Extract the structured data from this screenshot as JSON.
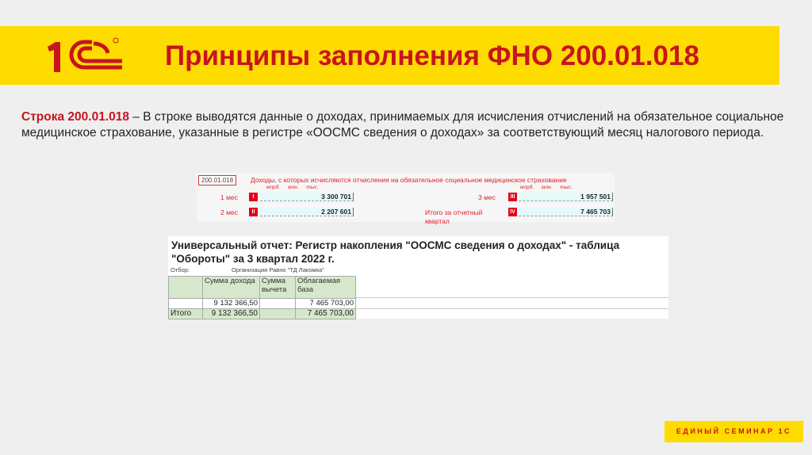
{
  "header": {
    "title": "Принципы заполнения ФНО 200.01.018",
    "logo_text": "1С"
  },
  "body": {
    "lead": "Строка 200.01.018",
    "text": " – В строке выводятся данные о доходах, принимаемых для исчисления отчислений на обязательное социальное медицинское страхование, указанные в регистре «ООСМС сведения о доходах» за соответствующий месяц налогового периода."
  },
  "form": {
    "code": "200.01.018",
    "heading": "Доходы, с которых исчисляются отчисления на обязательное социальное медицинское страхование",
    "units": "млрд. млн. тыс.",
    "rows": [
      {
        "label": "1 мес",
        "roman": "I",
        "value": "3 300 701"
      },
      {
        "label": "2 мес",
        "roman": "II",
        "value": "2 207 601"
      },
      {
        "label": "3 мес",
        "roman": "III",
        "value": "1 957 501"
      },
      {
        "label": "Итого за отчетный квартал",
        "roman": "IV",
        "value": "7 465 703"
      }
    ]
  },
  "report": {
    "title": "Универсальный отчет: Регистр накопления \"ООСМС сведения о доходах\" - таблица \"Обороты\" за 3 квартал 2022 г.",
    "filter_label": "Отбор:",
    "filter_value": "Организация Равно \"ТД Лакомка\"",
    "columns": [
      "",
      "Сумма дохода",
      "Сумма вычета",
      "Облагаемая база"
    ],
    "rows": [
      [
        "",
        "9 132 366,50",
        "",
        "7 465 703,00"
      ]
    ],
    "total": [
      "Итого",
      "9 132 366,50",
      "",
      "7 465 703,00"
    ]
  },
  "footer": {
    "label": "ЕДИНЫЙ СЕМИНАР 1С"
  },
  "colors": {
    "brand_yellow": "#ffdc00",
    "brand_red": "#c8141e"
  }
}
